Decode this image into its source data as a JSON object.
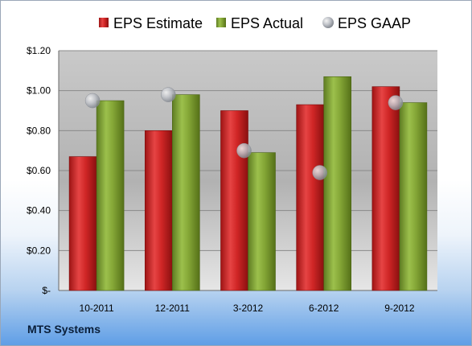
{
  "company": "MTS Systems",
  "chart_data": {
    "type": "bar",
    "categories": [
      "10-2011",
      "12-2011",
      "3-2012",
      "6-2012",
      "9-2012"
    ],
    "series": [
      {
        "name": "EPS Estimate",
        "type": "bar",
        "color": "#d42a2a",
        "values": [
          0.67,
          0.8,
          0.9,
          0.93,
          1.02
        ]
      },
      {
        "name": "EPS Actual",
        "type": "bar",
        "color": "#86a83a",
        "values": [
          0.95,
          0.98,
          0.69,
          1.07,
          0.94
        ]
      },
      {
        "name": "EPS GAAP",
        "type": "scatter",
        "color": "#b8bcc4",
        "values": [
          0.95,
          0.98,
          0.7,
          0.59,
          0.94
        ]
      }
    ],
    "ylim": [
      0,
      1.2
    ],
    "yticks": [
      0,
      0.2,
      0.4,
      0.6,
      0.8,
      1.0,
      1.2
    ],
    "ytick_labels": [
      "$-",
      "$0.20",
      "$0.40",
      "$0.60",
      "$0.80",
      "$1.00",
      "$1.20"
    ],
    "legend_position": "top",
    "grid": true
  }
}
